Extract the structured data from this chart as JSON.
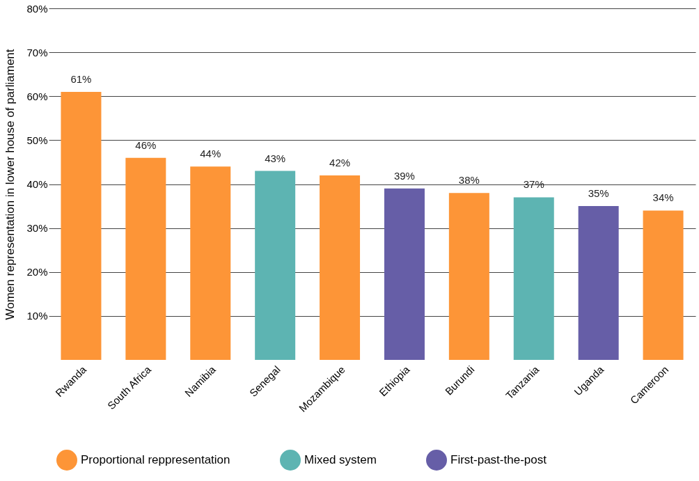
{
  "chart_data": {
    "type": "bar",
    "ylabel": "Women representation in lower house of parliament",
    "categories": [
      "Rwanda",
      "South Africa",
      "Namibia",
      "Senegal",
      "Mozambique",
      "Ethiopia",
      "Burundi",
      "Tanzania",
      "Uganda",
      "Cameroon"
    ],
    "series": [
      {
        "name": "Proportional reppresentation",
        "color": "#fd9537",
        "values": [
          61,
          46,
          44,
          null,
          42,
          null,
          38,
          null,
          null,
          34
        ],
        "value_labels": [
          "61%",
          "46%",
          "44%",
          null,
          "42%",
          null,
          "38%",
          null,
          null,
          "34%"
        ]
      },
      {
        "name": "Mixed system",
        "color": "#5db4b2",
        "values": [
          null,
          null,
          null,
          43,
          null,
          null,
          null,
          37,
          null,
          null
        ],
        "value_labels": [
          null,
          null,
          null,
          "43%",
          null,
          null,
          null,
          "37%",
          null,
          null
        ]
      },
      {
        "name": "First-past-the-post",
        "color": "#665ea7",
        "values": [
          null,
          null,
          null,
          null,
          null,
          39,
          null,
          null,
          35,
          null
        ],
        "value_labels": [
          null,
          null,
          null,
          null,
          null,
          "39%",
          null,
          null,
          "35%",
          null
        ]
      }
    ],
    "ylim": [
      0,
      80
    ],
    "yticks": [
      {
        "value": 10,
        "label": "10%"
      },
      {
        "value": 20,
        "label": "20%"
      },
      {
        "value": 30,
        "label": "30%"
      },
      {
        "value": 40,
        "label": "40%"
      },
      {
        "value": 50,
        "label": "50%"
      },
      {
        "value": 60,
        "label": "60%"
      },
      {
        "value": 70,
        "label": "70%"
      },
      {
        "value": 80,
        "label": "80%"
      }
    ],
    "grid": "y",
    "legend": "bottom"
  }
}
